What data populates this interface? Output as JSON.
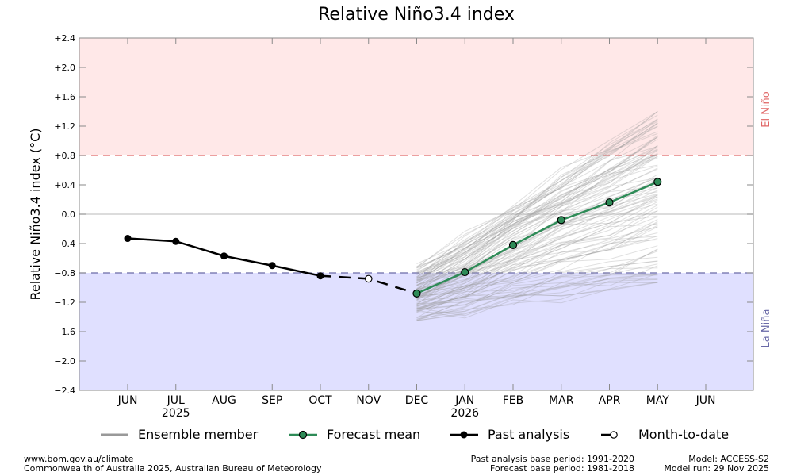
{
  "chart_data": {
    "type": "line",
    "title": "Relative Niño3.4 index",
    "ylabel": "Relative Niño3.4 index (°C)",
    "xlabel": "",
    "ylim": [
      -2.4,
      2.4
    ],
    "yticks": [
      "+2.4",
      "+2.0",
      "+1.6",
      "+1.2",
      "+0.8",
      "+0.4",
      "0.0",
      "−0.4",
      "−0.8",
      "−1.2",
      "−1.6",
      "−2.0",
      "−2.4"
    ],
    "categories": [
      "JUN",
      "JUL",
      "AUG",
      "SEP",
      "OCT",
      "NOV",
      "DEC",
      "JAN",
      "FEB",
      "MAR",
      "APR",
      "MAY",
      "JUN"
    ],
    "year_labels": [
      {
        "category_index": 1,
        "label": "2025"
      },
      {
        "category_index": 7,
        "label": "2026"
      }
    ],
    "thresholds": {
      "el_nino": 0.8,
      "la_nina": -0.8,
      "el_nino_label": "El Niño",
      "la_nina_label": "La Niña",
      "el_nino_color": "#e06666",
      "la_nina_color": "#6a6aa8",
      "el_nino_fill": "#ffe8e8",
      "la_nina_fill": "#e0e0ff"
    },
    "series": [
      {
        "name": "Past analysis",
        "color": "#000000",
        "x": [
          0,
          1,
          2,
          3,
          4
        ],
        "values": [
          -0.33,
          -0.37,
          -0.57,
          -0.7,
          -0.84
        ]
      },
      {
        "name": "Month-to-date",
        "color": "#000000",
        "x": [
          5
        ],
        "values": [
          -0.88
        ]
      },
      {
        "name": "Forecast mean",
        "color": "#2e8b57",
        "x": [
          6,
          7,
          8,
          9,
          10,
          11
        ],
        "values": [
          -1.08,
          -0.79,
          -0.42,
          -0.08,
          0.16,
          0.44
        ]
      },
      {
        "name": "Ensemble member",
        "color": "#999999",
        "x_start": 6,
        "x_end": 11,
        "spread_at_start": [
          -1.4,
          -0.75
        ],
        "spread_at_end": [
          -0.9,
          1.4
        ]
      }
    ],
    "legend": {
      "placement": "bottom",
      "entries": [
        "Ensemble member",
        "Forecast mean",
        "Past analysis",
        "Month-to-date"
      ]
    },
    "grid": false
  },
  "footer": {
    "url": "www.bom.gov.au/climate",
    "copyright": "Commonwealth of Australia 2025, Australian Bureau of Meteorology",
    "past_base": "Past analysis base period: 1991-2020",
    "forecast_base": "Forecast base period: 1981-2018",
    "model": "Model: ACCESS-S2",
    "model_run": "Model run: 29 Nov 2025"
  }
}
